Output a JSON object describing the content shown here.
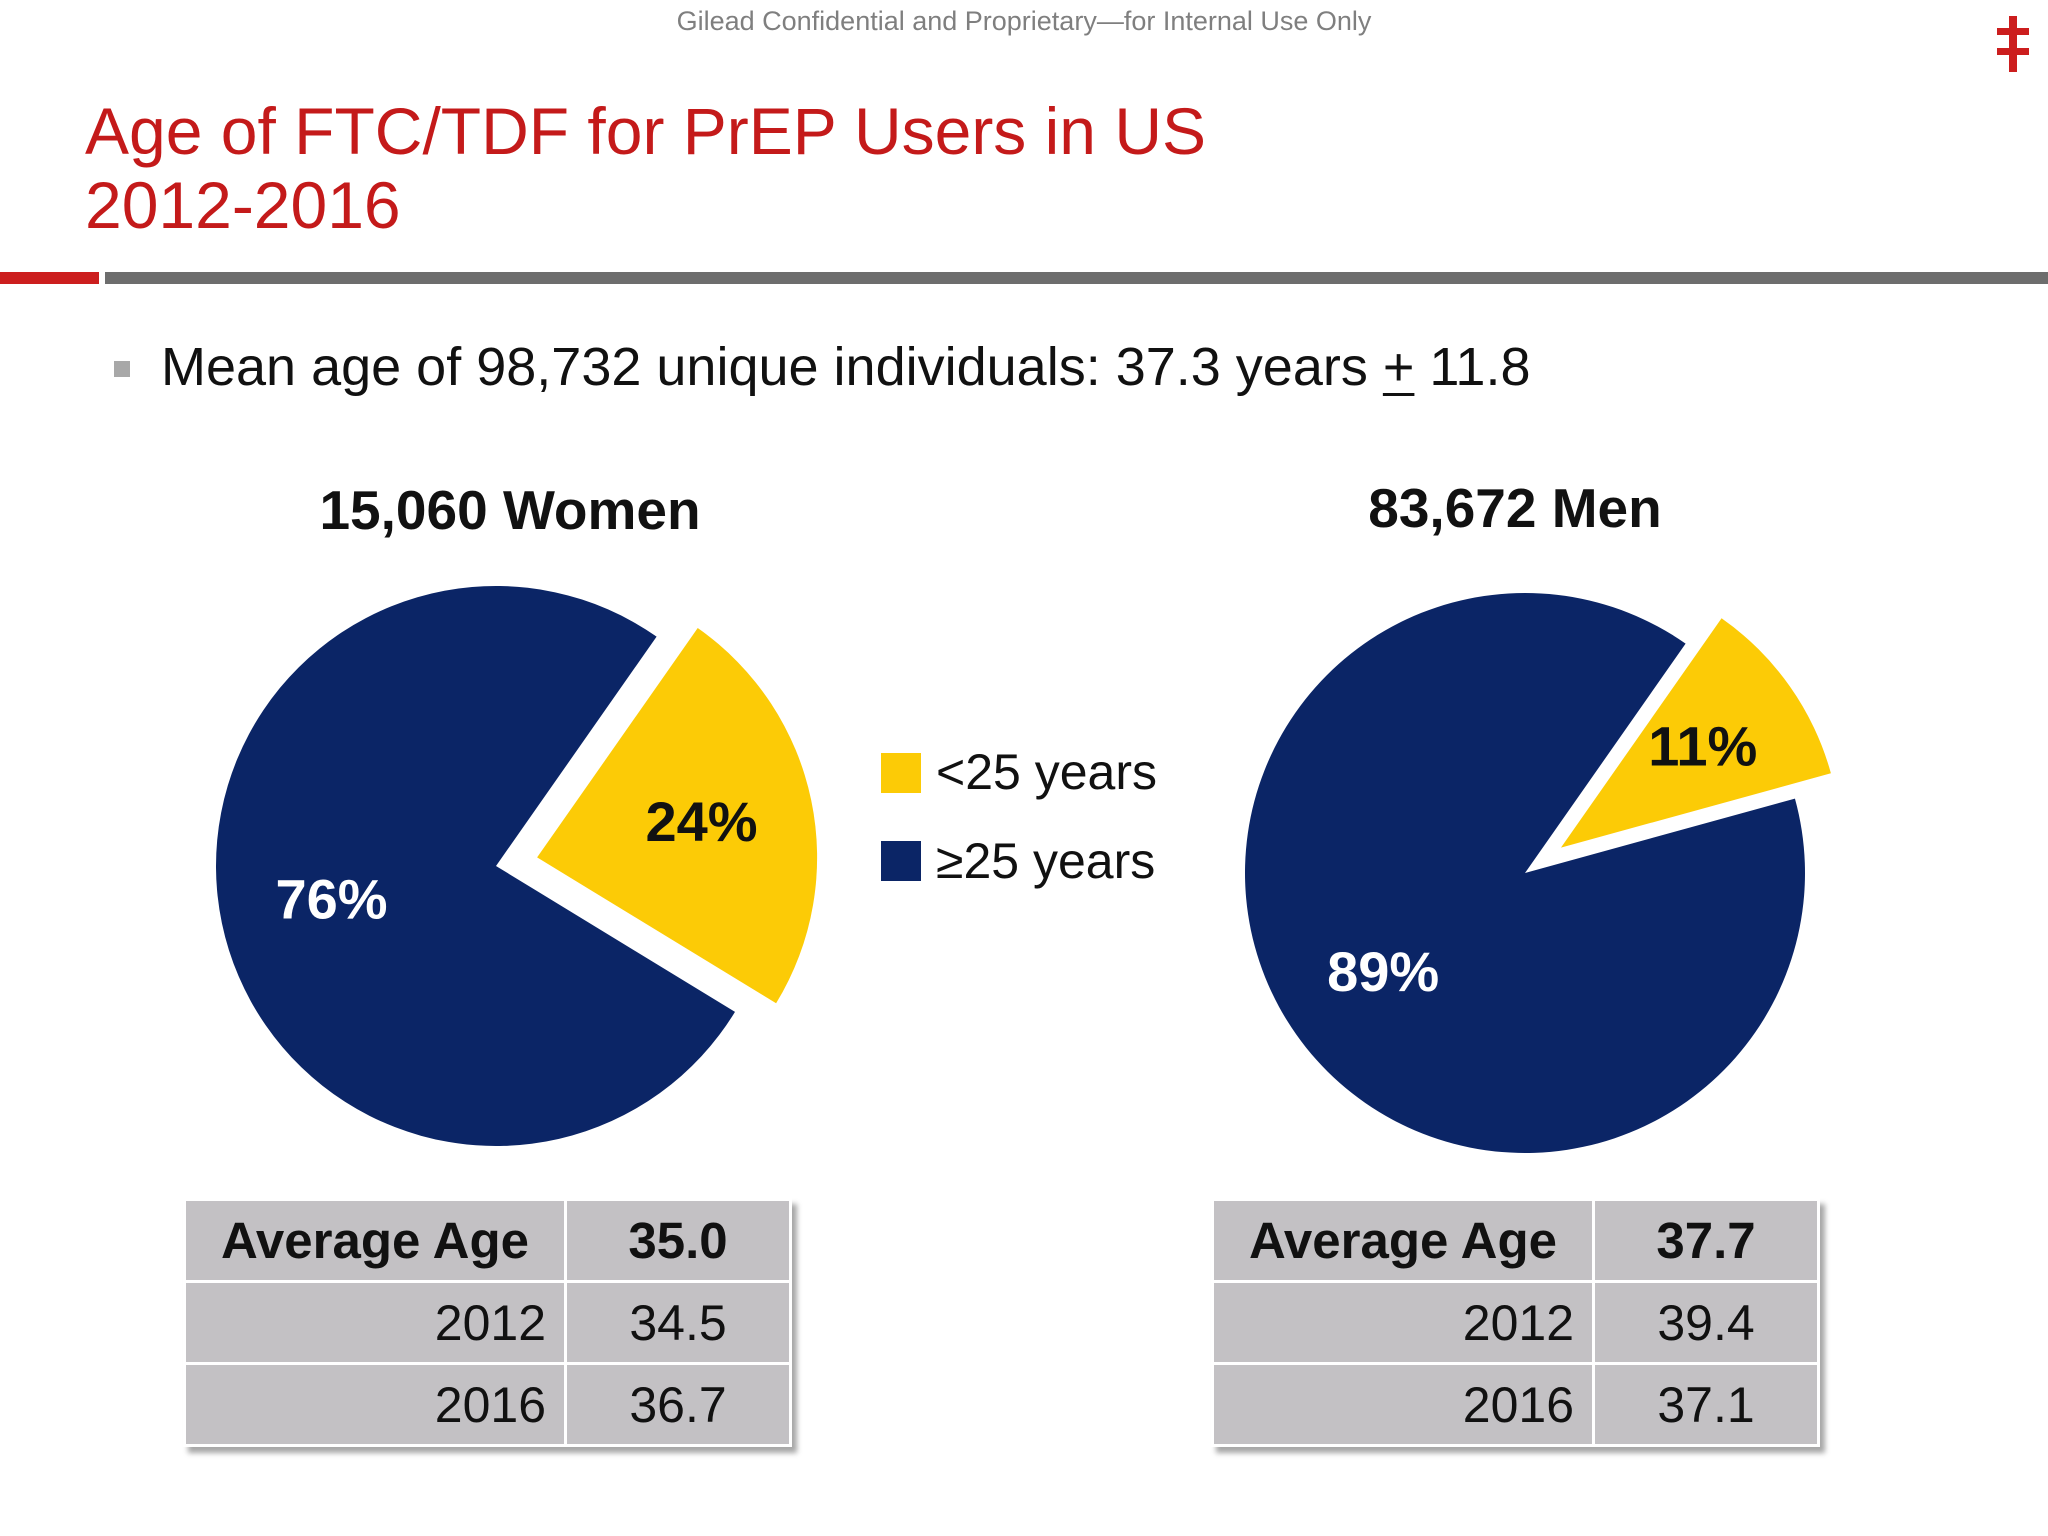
{
  "header": {
    "confidential": "Gilead Confidential and Proprietary—for Internal Use Only",
    "logo_icon": "double-dagger-icon",
    "title_line1": "Age of FTC/TDF for PrEP Users in US",
    "title_line2": "2012-2016"
  },
  "bullet": {
    "prefix": "Mean age of 98,732 unique individuals: 37.3 years ",
    "pm": "+",
    "suffix": " 11.8"
  },
  "colors": {
    "title_red": "#c41a1a",
    "under25": "#fccb06",
    "over25": "#0b2566",
    "table_bg": "#c3c1c4"
  },
  "legend": {
    "under25_label": "<25 years",
    "over25_label": "≥25 years"
  },
  "chart_data": [
    {
      "type": "pie",
      "title": "15,060 Women",
      "slices": [
        {
          "label": "<25 years",
          "value": 24,
          "display": "24%",
          "color": "#fccb06",
          "exploded": true
        },
        {
          "label": "≥25 years",
          "value": 76,
          "display": "76%",
          "color": "#0b2566",
          "exploded": false
        }
      ]
    },
    {
      "type": "pie",
      "title": "83,672 Men",
      "slices": [
        {
          "label": "<25 years",
          "value": 11,
          "display": "11%",
          "color": "#fccb06",
          "exploded": true
        },
        {
          "label": "≥25 years",
          "value": 89,
          "display": "89%",
          "color": "#0b2566",
          "exploded": false
        }
      ]
    }
  ],
  "tables": [
    {
      "header": {
        "label": "Average Age",
        "value": "35.0"
      },
      "rows": [
        {
          "year": "2012",
          "value": "34.5"
        },
        {
          "year": "2016",
          "value": "36.7"
        }
      ]
    },
    {
      "header": {
        "label": "Average Age",
        "value": "37.7"
      },
      "rows": [
        {
          "year": "2012",
          "value": "39.4"
        },
        {
          "year": "2016",
          "value": "37.1"
        }
      ]
    }
  ]
}
